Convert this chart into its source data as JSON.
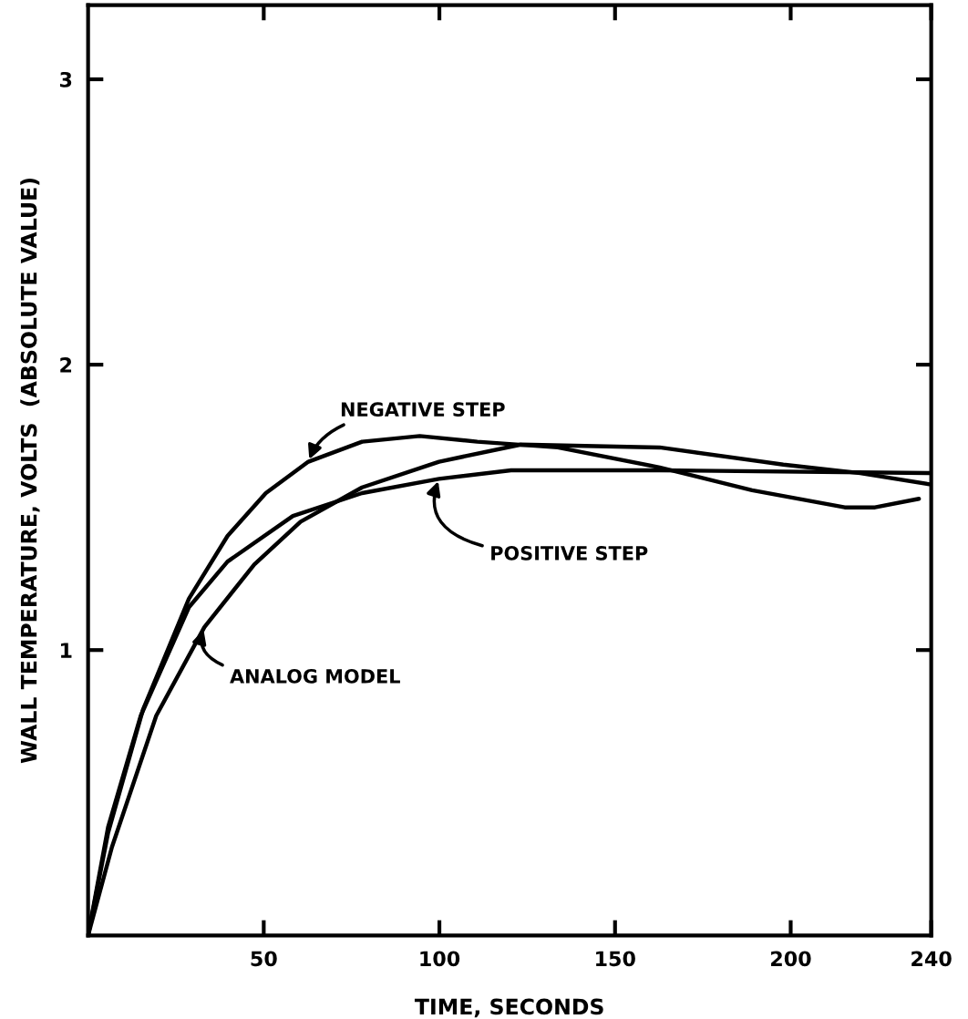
{
  "chart_data": {
    "type": "line",
    "xlabel": "TIME, SECONDS",
    "ylabel": "WALL TEMPERATURE, VOLTS  (ABSOLUTE VALUE)",
    "xlim": [
      0,
      240
    ],
    "ylim": [
      0,
      3.26
    ],
    "xticks": [
      50,
      100,
      150,
      200,
      240
    ],
    "yticks": [
      1,
      2,
      3
    ],
    "grid": false,
    "legend": false,
    "marker": "none",
    "line_style": "solid",
    "series": [
      {
        "color": "#000000",
        "x": [
          0,
          5.7,
          15.6,
          28.7,
          39.7,
          50.6,
          62.7,
          78,
          94.4,
          110.8,
          133.7,
          162.7,
          189,
          215.4,
          224,
          236.5
        ],
        "values": [
          0,
          0.36,
          0.79,
          1.18,
          1.4,
          1.55,
          1.66,
          1.73,
          1.75,
          1.73,
          1.71,
          1.64,
          1.56,
          1.5,
          1.5,
          1.53
        ]
      },
      {
        "color": "#000000",
        "x": [
          0,
          5.7,
          15,
          28.7,
          39.7,
          58.3,
          78,
          99.9,
          120.4,
          162.7,
          240
        ],
        "values": [
          0,
          0.38,
          0.77,
          1.15,
          1.31,
          1.47,
          1.55,
          1.6,
          1.63,
          1.63,
          1.62
        ]
      },
      {
        "color": "#000000",
        "x": [
          0,
          6.8,
          19.4,
          33.1,
          47.3,
          60.5,
          78,
          99.9,
          123.2,
          162.7,
          197.9,
          219.8,
          240
        ],
        "values": [
          0,
          0.31,
          0.77,
          1.08,
          1.3,
          1.45,
          1.57,
          1.66,
          1.72,
          1.71,
          1.65,
          1.62,
          1.58
        ]
      }
    ],
    "annotations": [
      {
        "text": "NEGATIVE STEP",
        "x": 62.7,
        "y": 1.66
      },
      {
        "text": "POSITIVE STEP",
        "x": 99.9,
        "y": 1.6
      },
      {
        "text": "ANALOG MODEL",
        "x": 33.1,
        "y": 1.08
      }
    ]
  }
}
